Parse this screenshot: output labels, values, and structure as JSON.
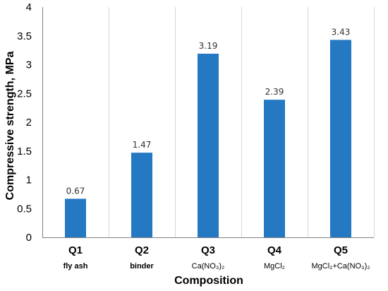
{
  "chart_data": {
    "type": "bar",
    "categories": [
      "Q1",
      "Q2",
      "Q3",
      "Q4",
      "Q5"
    ],
    "category_descriptions": [
      "fly ash",
      "binder",
      "Ca(NO₃)₂",
      "MgCl₂",
      "MgCl₂+Ca(NO₃)₂"
    ],
    "values": [
      0.67,
      1.47,
      3.19,
      2.39,
      3.43
    ],
    "value_labels": [
      "0.67",
      "1.47",
      "3.19",
      "2.39",
      "3.43"
    ],
    "title": "",
    "xlabel": "Composition",
    "ylabel": "Compressive strength, MPa",
    "ylim": [
      0,
      4
    ],
    "yticks": [
      "0",
      "0.5",
      "1",
      "1.5",
      "2",
      "2.5",
      "3",
      "3.5",
      "4"
    ],
    "grid": "vertical",
    "bar_color": "#2479c2",
    "legend": "none"
  }
}
